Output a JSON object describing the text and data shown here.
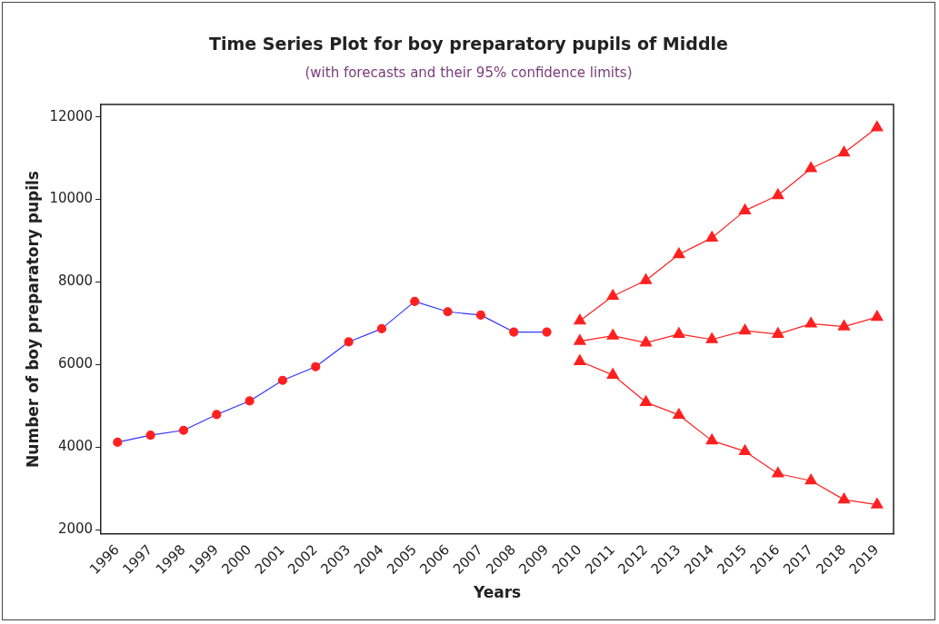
{
  "chart_data": {
    "type": "line",
    "title": "Time Series Plot for boy preparatory pupils of Middle",
    "subtitle": "(with forecasts and their 95% confidence limits)",
    "xlabel": "Years",
    "ylabel": "Number of boy preparatory pupils",
    "categories": [
      "1996",
      "1997",
      "1998",
      "1999",
      "2000",
      "2001",
      "2002",
      "2003",
      "2004",
      "2005",
      "2006",
      "2007",
      "2008",
      "2009",
      "2010",
      "2011",
      "2012",
      "2013",
      "2014",
      "2015",
      "2016",
      "2017",
      "2018",
      "2019"
    ],
    "series": [
      {
        "color": "#3333ff",
        "marker": "circle",
        "values": [
          4120,
          4290,
          4410,
          4790,
          5120,
          5620,
          5950,
          6550,
          6870,
          7530,
          7280,
          7200,
          6790,
          6790,
          null,
          null,
          null,
          null,
          null,
          null,
          null,
          null,
          null,
          null
        ],
        "colors": [
          "#ff2020",
          "#ff2020",
          "#ff2020",
          "#ff2020",
          "#ff2020",
          "#ff2020",
          "#ff2020",
          "#ff2020",
          "#ff2020",
          "#ff2020",
          "#ff2020",
          "#ff2020",
          "#ff2020",
          "#ff2020",
          null,
          null,
          null,
          null,
          null,
          null,
          null,
          null,
          null,
          null
        ]
      },
      {
        "color": "#ff2020",
        "marker": "triangle",
        "values": [
          null,
          null,
          null,
          null,
          null,
          null,
          null,
          null,
          null,
          null,
          null,
          null,
          null,
          null,
          7060,
          7660,
          8040,
          8670,
          9070,
          9730,
          10100,
          10750,
          11130,
          11740
        ]
      },
      {
        "color": "#ff2020",
        "marker": "triangle",
        "values": [
          null,
          null,
          null,
          null,
          null,
          null,
          null,
          null,
          null,
          null,
          null,
          null,
          null,
          null,
          6570,
          6700,
          6530,
          6740,
          6610,
          6820,
          6740,
          6990,
          6920,
          7150
        ]
      },
      {
        "color": "#ff2020",
        "marker": "triangle",
        "values": [
          null,
          null,
          null,
          null,
          null,
          null,
          null,
          null,
          null,
          null,
          null,
          null,
          null,
          null,
          6080,
          5750,
          5090,
          4780,
          4160,
          3900,
          3360,
          3190,
          2730,
          2610
        ]
      }
    ],
    "ylim": [
      1900,
      12300
    ],
    "yticks": [
      2000,
      4000,
      6000,
      8000,
      10000,
      12000
    ],
    "grid": false,
    "legend": false,
    "line_style": "solid"
  }
}
